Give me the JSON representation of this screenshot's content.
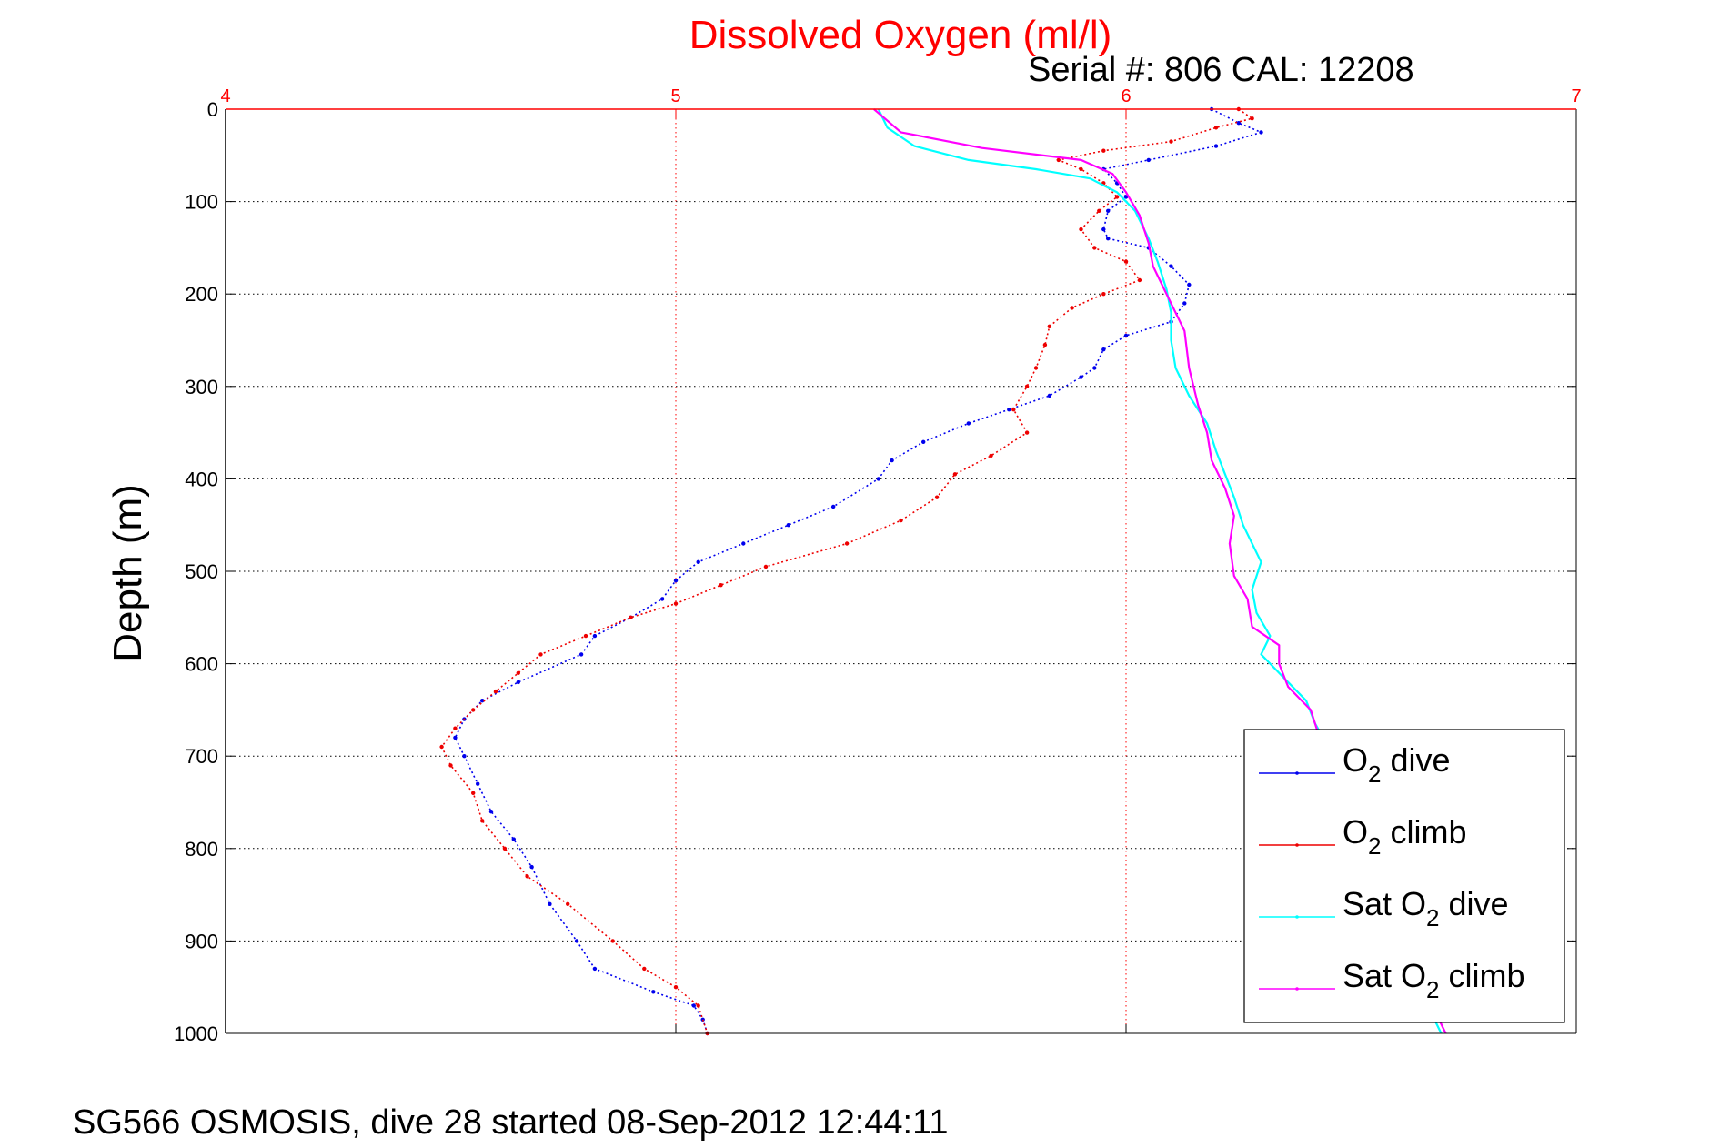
{
  "colors": {
    "o2_dive": "#0000ee",
    "o2_climb": "#ee0000",
    "sat_dive": "#00ffff",
    "sat_climb": "#ff00ff",
    "top_axis": "#ff0000",
    "grid": "#000000",
    "vgrid": "#ff0000"
  },
  "chart_data": {
    "type": "line",
    "title": "Dissolved Oxygen (ml/l)",
    "subtitle": "Serial #: 806  CAL: 12208",
    "ylabel": "Depth (m)",
    "xlabel": "",
    "footer": "SG566 OSMOSIS, dive 28 started 08-Sep-2012 12:44:11",
    "xlim": [
      4,
      7
    ],
    "ylim": [
      0,
      1000
    ],
    "y_reversed": true,
    "x_axis_position": "top",
    "x_ticks": [
      "4",
      "5",
      "6",
      "7"
    ],
    "y_ticks": [
      "0",
      "100",
      "200",
      "300",
      "400",
      "500",
      "600",
      "700",
      "800",
      "900",
      "1000"
    ],
    "grid": true,
    "legend_position": "bottom-right",
    "legend": [
      {
        "main": "O",
        "sub": "2",
        "rest": " dive",
        "series": 0
      },
      {
        "main": "O",
        "sub": "2",
        "rest": " climb",
        "series": 1
      },
      {
        "main": "Sat O",
        "sub": "2",
        "rest": " dive",
        "series": 2
      },
      {
        "main": "Sat O",
        "sub": "2",
        "rest": " climb",
        "series": 3
      }
    ],
    "series": [
      {
        "name": "O2 dive",
        "style": "dots",
        "color_key": "o2_dive",
        "points": [
          [
            6.19,
            0
          ],
          [
            6.25,
            15
          ],
          [
            6.3,
            25
          ],
          [
            6.2,
            40
          ],
          [
            6.05,
            55
          ],
          [
            5.95,
            65
          ],
          [
            5.98,
            80
          ],
          [
            6.0,
            95
          ],
          [
            5.96,
            110
          ],
          [
            5.95,
            130
          ],
          [
            5.96,
            140
          ],
          [
            6.05,
            150
          ],
          [
            6.1,
            170
          ],
          [
            6.14,
            190
          ],
          [
            6.13,
            210
          ],
          [
            6.1,
            230
          ],
          [
            6.0,
            245
          ],
          [
            5.95,
            260
          ],
          [
            5.93,
            280
          ],
          [
            5.9,
            290
          ],
          [
            5.83,
            310
          ],
          [
            5.74,
            325
          ],
          [
            5.65,
            340
          ],
          [
            5.55,
            360
          ],
          [
            5.48,
            380
          ],
          [
            5.45,
            400
          ],
          [
            5.35,
            430
          ],
          [
            5.25,
            450
          ],
          [
            5.15,
            470
          ],
          [
            5.05,
            490
          ],
          [
            5.0,
            510
          ],
          [
            4.97,
            530
          ],
          [
            4.9,
            550
          ],
          [
            4.82,
            570
          ],
          [
            4.79,
            590
          ],
          [
            4.65,
            620
          ],
          [
            4.57,
            640
          ],
          [
            4.53,
            660
          ],
          [
            4.51,
            680
          ],
          [
            4.53,
            700
          ],
          [
            4.56,
            730
          ],
          [
            4.59,
            760
          ],
          [
            4.64,
            790
          ],
          [
            4.68,
            820
          ],
          [
            4.72,
            860
          ],
          [
            4.78,
            900
          ],
          [
            4.82,
            930
          ],
          [
            4.95,
            955
          ],
          [
            5.04,
            970
          ],
          [
            5.06,
            985
          ],
          [
            5.07,
            1000
          ]
        ]
      },
      {
        "name": "O2 climb",
        "style": "dots",
        "color_key": "o2_climb",
        "points": [
          [
            6.25,
            0
          ],
          [
            6.28,
            10
          ],
          [
            6.2,
            20
          ],
          [
            6.1,
            35
          ],
          [
            5.95,
            45
          ],
          [
            5.85,
            55
          ],
          [
            5.9,
            65
          ],
          [
            5.95,
            80
          ],
          [
            5.98,
            95
          ],
          [
            5.94,
            110
          ],
          [
            5.9,
            130
          ],
          [
            5.93,
            150
          ],
          [
            6.0,
            165
          ],
          [
            6.03,
            185
          ],
          [
            5.95,
            200
          ],
          [
            5.88,
            215
          ],
          [
            5.83,
            235
          ],
          [
            5.82,
            255
          ],
          [
            5.8,
            280
          ],
          [
            5.78,
            300
          ],
          [
            5.75,
            325
          ],
          [
            5.78,
            350
          ],
          [
            5.7,
            375
          ],
          [
            5.62,
            395
          ],
          [
            5.58,
            420
          ],
          [
            5.5,
            445
          ],
          [
            5.38,
            470
          ],
          [
            5.2,
            495
          ],
          [
            5.1,
            515
          ],
          [
            5.0,
            535
          ],
          [
            4.9,
            550
          ],
          [
            4.8,
            570
          ],
          [
            4.7,
            590
          ],
          [
            4.65,
            610
          ],
          [
            4.6,
            630
          ],
          [
            4.55,
            650
          ],
          [
            4.51,
            670
          ],
          [
            4.48,
            690
          ],
          [
            4.5,
            710
          ],
          [
            4.55,
            740
          ],
          [
            4.57,
            770
          ],
          [
            4.62,
            800
          ],
          [
            4.67,
            830
          ],
          [
            4.76,
            860
          ],
          [
            4.86,
            900
          ],
          [
            4.93,
            930
          ],
          [
            5.0,
            950
          ],
          [
            5.05,
            970
          ],
          [
            5.07,
            1000
          ]
        ]
      },
      {
        "name": "Sat O2 dive",
        "style": "line",
        "color_key": "sat_dive",
        "points": [
          [
            5.45,
            0
          ],
          [
            5.47,
            20
          ],
          [
            5.53,
            40
          ],
          [
            5.65,
            55
          ],
          [
            5.8,
            65
          ],
          [
            5.92,
            75
          ],
          [
            5.98,
            90
          ],
          [
            6.02,
            110
          ],
          [
            6.05,
            140
          ],
          [
            6.07,
            165
          ],
          [
            6.09,
            195
          ],
          [
            6.1,
            220
          ],
          [
            6.1,
            250
          ],
          [
            6.11,
            280
          ],
          [
            6.14,
            310
          ],
          [
            6.18,
            340
          ],
          [
            6.2,
            370
          ],
          [
            6.22,
            395
          ],
          [
            6.24,
            420
          ],
          [
            6.26,
            450
          ],
          [
            6.28,
            470
          ],
          [
            6.3,
            490
          ],
          [
            6.28,
            520
          ],
          [
            6.29,
            545
          ],
          [
            6.32,
            570
          ],
          [
            6.3,
            590
          ],
          [
            6.35,
            615
          ],
          [
            6.4,
            640
          ],
          [
            6.42,
            665
          ],
          [
            6.45,
            690
          ],
          [
            6.47,
            720
          ],
          [
            6.5,
            760
          ],
          [
            6.52,
            800
          ],
          [
            6.55,
            850
          ],
          [
            6.6,
            900
          ],
          [
            6.65,
            950
          ],
          [
            6.7,
            1000
          ]
        ]
      },
      {
        "name": "Sat O2 climb",
        "style": "line",
        "color_key": "sat_climb",
        "points": [
          [
            5.44,
            0
          ],
          [
            5.5,
            25
          ],
          [
            5.68,
            42
          ],
          [
            5.9,
            55
          ],
          [
            5.97,
            70
          ],
          [
            6.0,
            90
          ],
          [
            6.03,
            115
          ],
          [
            6.05,
            145
          ],
          [
            6.06,
            170
          ],
          [
            6.09,
            200
          ],
          [
            6.13,
            240
          ],
          [
            6.14,
            280
          ],
          [
            6.16,
            320
          ],
          [
            6.18,
            350
          ],
          [
            6.19,
            380
          ],
          [
            6.22,
            410
          ],
          [
            6.24,
            440
          ],
          [
            6.23,
            470
          ],
          [
            6.24,
            505
          ],
          [
            6.27,
            530
          ],
          [
            6.28,
            560
          ],
          [
            6.34,
            580
          ],
          [
            6.34,
            600
          ],
          [
            6.36,
            625
          ],
          [
            6.41,
            650
          ],
          [
            6.43,
            680
          ],
          [
            6.46,
            720
          ],
          [
            6.5,
            760
          ],
          [
            6.52,
            800
          ],
          [
            6.55,
            850
          ],
          [
            6.6,
            900
          ],
          [
            6.66,
            950
          ],
          [
            6.71,
            1000
          ]
        ]
      }
    ]
  }
}
